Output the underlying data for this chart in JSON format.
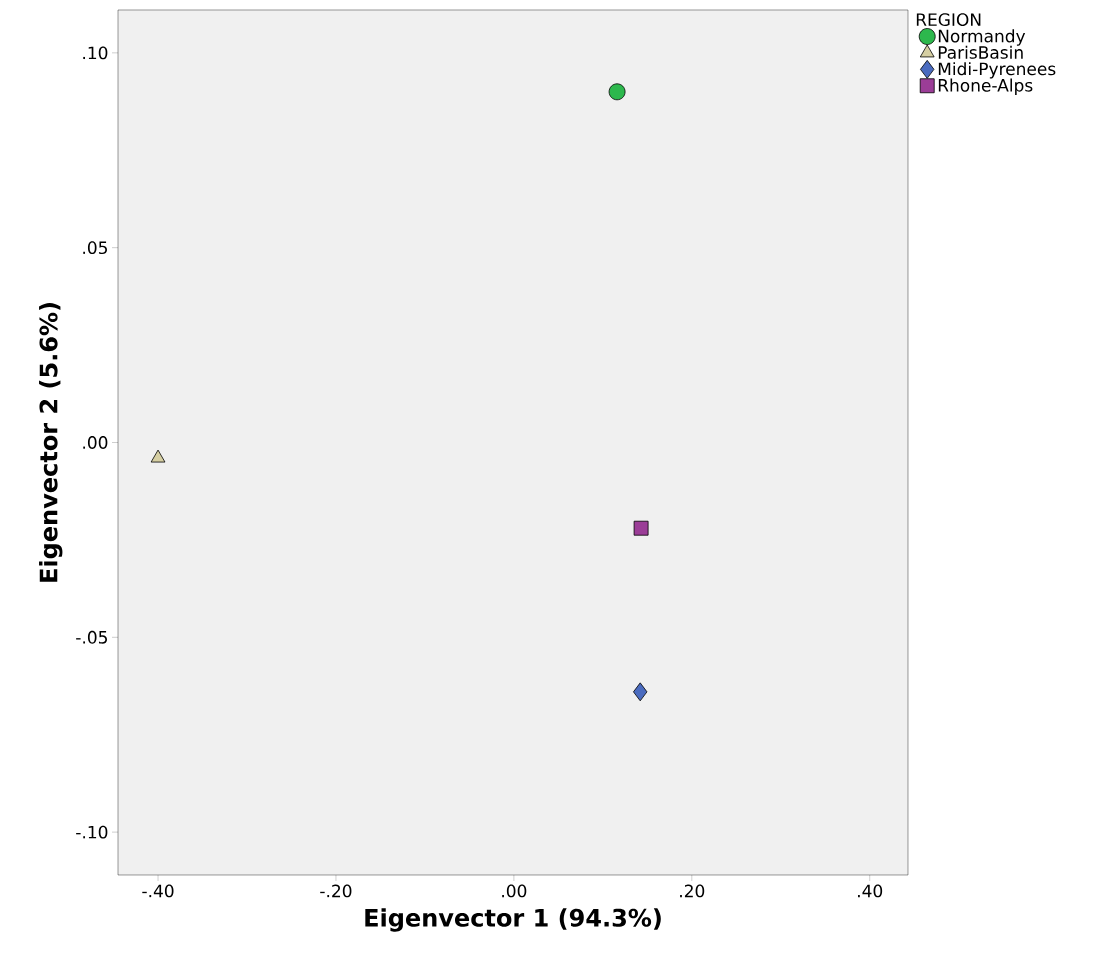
{
  "chart_data": {
    "type": "scatter",
    "xlabel": "Eigenvector 1 (94.3%)",
    "ylabel": "Eigenvector 2 (5.6%)",
    "legend_title": "REGION",
    "legend": "right",
    "xlim": [
      -0.445,
      0.443
    ],
    "ylim": [
      -0.111,
      0.111
    ],
    "xticks": [
      {
        "value": -0.4,
        "label": "-.40"
      },
      {
        "value": -0.2,
        "label": "-.20"
      },
      {
        "value": 0,
        "label": ".00"
      },
      {
        "value": 0.2,
        "label": ".20"
      },
      {
        "value": 0.4,
        "label": ".40"
      }
    ],
    "yticks": [
      {
        "value": -0.1,
        "label": "-.10"
      },
      {
        "value": -0.05,
        "label": "-.05"
      },
      {
        "value": 0,
        "label": ".00"
      },
      {
        "value": 0.05,
        "label": ".05"
      },
      {
        "value": 0.1,
        "label": ".10"
      }
    ],
    "series": [
      {
        "name": "Normandy",
        "color": "#2db84d",
        "marker": "circle",
        "x": [
          0.116
        ],
        "values": [
          0.09
        ]
      },
      {
        "name": "ParisBasin",
        "color": "#d6cfa3",
        "marker": "triangle",
        "x": [
          -0.4
        ],
        "values": [
          -0.004
        ]
      },
      {
        "name": "Midi-Pyrenees",
        "color": "#4a6bbf",
        "marker": "diamond",
        "x": [
          0.142
        ],
        "values": [
          -0.064
        ]
      },
      {
        "name": "Rhone-Alps",
        "color": "#9b3d97",
        "marker": "square",
        "x": [
          0.143
        ],
        "values": [
          -0.022
        ]
      }
    ]
  }
}
